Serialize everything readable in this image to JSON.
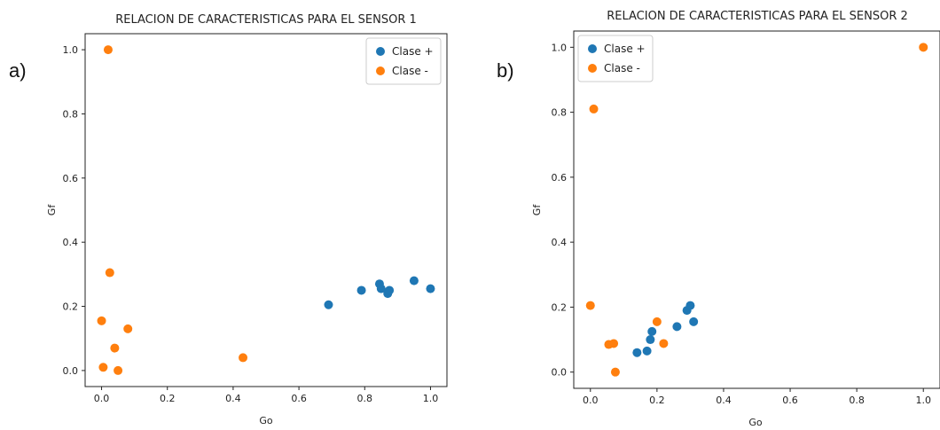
{
  "colors": {
    "positive": "#1f77b4",
    "negative": "#ff7f0e"
  },
  "panel_letters": [
    "a)",
    "b)"
  ],
  "chart_data": [
    {
      "type": "scatter",
      "title": "RELACION DE CARACTERISTICAS PARA EL SENSOR 1",
      "xlabel": "Go",
      "ylabel": "Gf",
      "xlim": [
        -0.05,
        1.05
      ],
      "ylim": [
        -0.05,
        1.05
      ],
      "xticks": [
        "0.0",
        "0.2",
        "0.4",
        "0.6",
        "0.8",
        "1.0"
      ],
      "yticks": [
        "0.0",
        "0.2",
        "0.4",
        "0.6",
        "0.8",
        "1.0"
      ],
      "grid": false,
      "legend_position": "top-right",
      "series": [
        {
          "name": "Clase +",
          "color": "#1f77b4",
          "points": [
            [
              0.69,
              0.205
            ],
            [
              0.79,
              0.25
            ],
            [
              0.845,
              0.27
            ],
            [
              0.85,
              0.255
            ],
            [
              0.87,
              0.24
            ],
            [
              0.875,
              0.25
            ],
            [
              0.95,
              0.28
            ],
            [
              1.0,
              0.255
            ]
          ]
        },
        {
          "name": "Clase -",
          "color": "#ff7f0e",
          "points": [
            [
              0.02,
              1.0
            ],
            [
              0.025,
              0.305
            ],
            [
              0.0,
              0.155
            ],
            [
              0.08,
              0.13
            ],
            [
              0.04,
              0.07
            ],
            [
              0.005,
              0.01
            ],
            [
              0.05,
              0.0
            ],
            [
              0.43,
              0.04
            ]
          ]
        }
      ]
    },
    {
      "type": "scatter",
      "title": "RELACION DE CARACTERISTICAS PARA EL SENSOR 2",
      "xlabel": "Go",
      "ylabel": "Gf",
      "xlim": [
        -0.05,
        1.05
      ],
      "ylim": [
        -0.05,
        1.05
      ],
      "xticks": [
        "0.0",
        "0.2",
        "0.4",
        "0.6",
        "0.8",
        "1.0"
      ],
      "yticks": [
        "0.0",
        "0.2",
        "0.4",
        "0.6",
        "0.8",
        "1.0"
      ],
      "grid": false,
      "legend_position": "top-left",
      "series": [
        {
          "name": "Clase +",
          "color": "#1f77b4",
          "points": [
            [
              0.14,
              0.06
            ],
            [
              0.17,
              0.065
            ],
            [
              0.18,
              0.1
            ],
            [
              0.185,
              0.125
            ],
            [
              0.26,
              0.14
            ],
            [
              0.29,
              0.19
            ],
            [
              0.3,
              0.205
            ],
            [
              0.31,
              0.155
            ]
          ]
        },
        {
          "name": "Clase -",
          "color": "#ff7f0e",
          "points": [
            [
              0.0,
              0.205
            ],
            [
              0.01,
              0.81
            ],
            [
              0.055,
              0.085
            ],
            [
              0.07,
              0.088
            ],
            [
              0.075,
              0.0
            ],
            [
              0.2,
              0.155
            ],
            [
              0.22,
              0.088
            ],
            [
              1.0,
              1.0
            ]
          ]
        }
      ]
    }
  ]
}
